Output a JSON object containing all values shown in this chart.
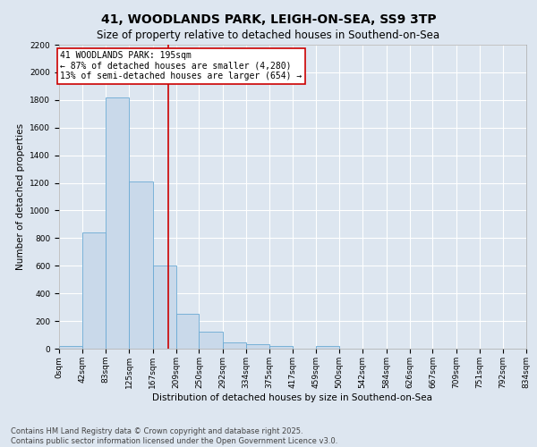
{
  "title_line1": "41, WOODLANDS PARK, LEIGH-ON-SEA, SS9 3TP",
  "title_line2": "Size of property relative to detached houses in Southend-on-Sea",
  "xlabel": "Distribution of detached houses by size in Southend-on-Sea",
  "ylabel": "Number of detached properties",
  "bin_labels": [
    "0sqm",
    "42sqm",
    "83sqm",
    "125sqm",
    "167sqm",
    "209sqm",
    "250sqm",
    "292sqm",
    "334sqm",
    "375sqm",
    "417sqm",
    "459sqm",
    "500sqm",
    "542sqm",
    "584sqm",
    "626sqm",
    "667sqm",
    "709sqm",
    "751sqm",
    "792sqm",
    "834sqm"
  ],
  "bar_values": [
    20,
    840,
    1820,
    1210,
    600,
    255,
    125,
    45,
    30,
    20,
    0,
    20,
    0,
    0,
    0,
    0,
    0,
    0,
    0,
    0
  ],
  "bin_edges": [
    0,
    42,
    83,
    125,
    167,
    209,
    250,
    292,
    334,
    375,
    417,
    459,
    500,
    542,
    584,
    626,
    667,
    709,
    751,
    792,
    834
  ],
  "bar_color": "#c9d9ea",
  "bar_edgecolor": "#6aaad4",
  "property_value": 195,
  "annotation_text": "41 WOODLANDS PARK: 195sqm\n← 87% of detached houses are smaller (4,280)\n13% of semi-detached houses are larger (654) →",
  "annotation_box_color": "#ffffff",
  "annotation_box_edgecolor": "#cc0000",
  "vline_color": "#cc0000",
  "ylim": [
    0,
    2200
  ],
  "yticks": [
    0,
    200,
    400,
    600,
    800,
    1000,
    1200,
    1400,
    1600,
    1800,
    2000,
    2200
  ],
  "background_color": "#dde6f0",
  "grid_color": "#ffffff",
  "footer_line1": "Contains HM Land Registry data © Crown copyright and database right 2025.",
  "footer_line2": "Contains public sector information licensed under the Open Government Licence v3.0.",
  "title_fontsize": 10,
  "subtitle_fontsize": 8.5,
  "axis_label_fontsize": 7.5,
  "tick_fontsize": 6.5,
  "annotation_fontsize": 7,
  "footer_fontsize": 6
}
